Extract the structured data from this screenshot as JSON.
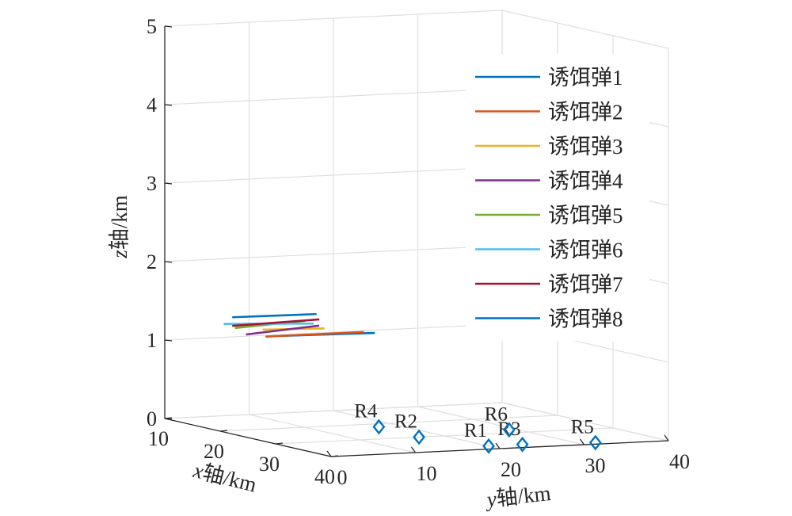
{
  "chart_data": {
    "type": "line",
    "view": "3d",
    "grid": true,
    "legend_placement": "top-right",
    "xlabel": {
      "var": "x",
      "text": "轴/km"
    },
    "ylabel": {
      "var": "y",
      "text": "轴/km"
    },
    "zlabel": {
      "var": "z",
      "text": "轴/km"
    },
    "xlim": [
      10,
      40
    ],
    "ylim": [
      0,
      40
    ],
    "zlim": [
      0,
      5
    ],
    "x_ticks": [
      "10",
      "20",
      "30",
      "40"
    ],
    "y_ticks": [
      "0",
      "10",
      "20",
      "30",
      "40"
    ],
    "z_ticks": [
      "0",
      "1",
      "2",
      "3",
      "4",
      "5"
    ],
    "series": [
      {
        "name": "诱饵弹1",
        "color": "#0072BD",
        "start": [
          17.0,
          9.0,
          1.12
        ],
        "end": [
          19.0,
          19.0,
          1.14
        ]
      },
      {
        "name": "诱饵弹2",
        "color": "#D95319",
        "start": [
          16.0,
          8.0,
          1.1
        ],
        "end": [
          17.0,
          19.0,
          1.12
        ]
      },
      {
        "name": "诱饵弹3",
        "color": "#EDB120",
        "start": [
          15.5,
          8.0,
          1.18
        ],
        "end": [
          16.0,
          15.0,
          1.17
        ]
      },
      {
        "name": "诱饵弹4",
        "color": "#7E2F8E",
        "start": [
          14.0,
          7.0,
          1.1
        ],
        "end": [
          12.0,
          17.0,
          1.13
        ]
      },
      {
        "name": "诱饵弹5",
        "color": "#77AC30",
        "start": [
          12.0,
          7.0,
          1.15
        ],
        "end": [
          11.0,
          16.0,
          1.18
        ]
      },
      {
        "name": "诱饵弹6",
        "color": "#4DBEEE",
        "start": [
          10.0,
          7.0,
          1.17
        ],
        "end": [
          11.0,
          17.0,
          1.14
        ]
      },
      {
        "name": "诱饵弹7",
        "color": "#A2142F",
        "start": [
          10.0,
          8.0,
          1.14
        ],
        "end": [
          10.5,
          18.0,
          1.18
        ]
      },
      {
        "name": "诱饵弹8",
        "color": "#0072BD",
        "start": [
          10.0,
          8.0,
          1.25
        ],
        "end": [
          10.0,
          18.0,
          1.24
        ]
      }
    ],
    "markers": {
      "shape": "diamond",
      "color": "#0072BD",
      "points": [
        {
          "label": "R1",
          "x": 38.0,
          "y": 20.0,
          "z": 0
        },
        {
          "label": "R2",
          "x": 30.0,
          "y": 17.0,
          "z": 0
        },
        {
          "label": "R3",
          "x": 38.0,
          "y": 24.0,
          "z": 0
        },
        {
          "label": "R4",
          "x": 22.0,
          "y": 17.5,
          "z": 0
        },
        {
          "label": "R5",
          "x": 39.0,
          "y": 32.0,
          "z": 0
        },
        {
          "label": "R6",
          "x": 28.0,
          "y": 29.0,
          "z": 0
        }
      ]
    }
  }
}
